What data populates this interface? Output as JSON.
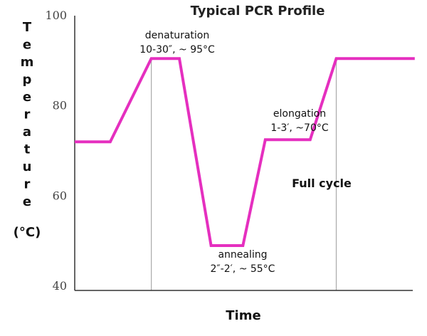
{
  "chart_data": {
    "type": "line",
    "title": "Typical PCR Profile",
    "xlabel": "Time",
    "ylabel_letters": [
      "T",
      "e",
      "m",
      "p",
      "e",
      "r",
      "a",
      "t",
      "u",
      "r",
      "e"
    ],
    "ylabel_unit": "(°C)",
    "ylim": [
      40,
      100
    ],
    "yticks": [
      "100",
      "80",
      "60",
      "40"
    ],
    "ytick_values": [
      100,
      80,
      60,
      40
    ],
    "x_ticks_shown": false,
    "grid": false,
    "series_color": "#e52fbf",
    "guide_color": "#aaaaaa",
    "series": [
      {
        "x": [
          0,
          9.5,
          20.5,
          28,
          36.5,
          45,
          51,
          63,
          70,
          83,
          91
        ],
        "values": [
          72,
          72,
          90.5,
          90.5,
          49,
          49,
          72.5,
          72.5,
          90.5,
          90.5,
          90.5
        ]
      }
    ],
    "guide_lines_x": [
      20.5,
      70
    ],
    "annotations": [
      {
        "id": "denaturation",
        "line1": "denaturation",
        "line2": "10-30″, ~ 95°C"
      },
      {
        "id": "elongation",
        "line1": "elongation",
        "line2": "1-3′, ~70°C"
      },
      {
        "id": "annealing",
        "line1": "annealing",
        "line2": "2″-2′, ~ 55°C"
      },
      {
        "id": "cycle",
        "line1": "Full cycle"
      }
    ]
  }
}
